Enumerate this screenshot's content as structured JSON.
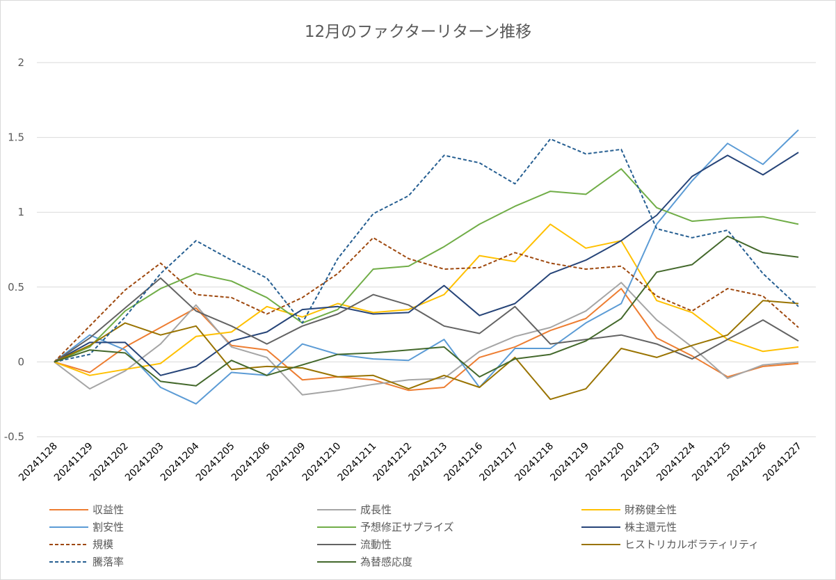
{
  "chart_data": {
    "type": "line",
    "title": "12月のファクターリターン推移",
    "xlabel": "",
    "ylabel": "",
    "ylim": [
      -0.5,
      2
    ],
    "yticks": [
      -0.5,
      0,
      0.5,
      1,
      1.5,
      2
    ],
    "ytick_labels": [
      "-0.5",
      "0",
      "0.5",
      "1",
      "1.5",
      "2"
    ],
    "grid": true,
    "legend_position": "bottom",
    "categories": [
      "20241128",
      "20241129",
      "20241202",
      "20241203",
      "20241204",
      "20241205",
      "20241206",
      "20241209",
      "20241210",
      "20241211",
      "20241212",
      "20241213",
      "20241216",
      "20241217",
      "20241218",
      "20241219",
      "20241220",
      "20241223",
      "20241224",
      "20241225",
      "20241226",
      "20241227"
    ],
    "series": [
      {
        "name": "収益性",
        "color": "#ED7D31",
        "dash": "solid",
        "values": [
          0,
          -0.07,
          0.1,
          0.23,
          0.36,
          0.11,
          0.08,
          -0.12,
          -0.1,
          -0.12,
          -0.19,
          -0.17,
          0.03,
          0.1,
          0.21,
          0.29,
          0.49,
          0.16,
          0.04,
          -0.1,
          -0.03,
          -0.01
        ]
      },
      {
        "name": "成長性",
        "color": "#A5A5A5",
        "dash": "solid",
        "values": [
          0,
          -0.18,
          -0.06,
          0.12,
          0.38,
          0.1,
          0.03,
          -0.22,
          -0.19,
          -0.15,
          -0.12,
          -0.11,
          0.07,
          0.17,
          0.23,
          0.34,
          0.53,
          0.28,
          0.1,
          -0.11,
          -0.02,
          0.0
        ]
      },
      {
        "name": "財務健全性",
        "color": "#FFC000",
        "dash": "solid",
        "values": [
          0,
          -0.09,
          -0.05,
          -0.01,
          0.17,
          0.2,
          0.37,
          0.3,
          0.39,
          0.33,
          0.35,
          0.45,
          0.71,
          0.67,
          0.92,
          0.76,
          0.81,
          0.41,
          0.33,
          0.15,
          0.07,
          0.1
        ]
      },
      {
        "name": "割安性",
        "color": "#5B9BD5",
        "dash": "solid",
        "values": [
          0,
          0.18,
          0.08,
          -0.17,
          -0.28,
          -0.07,
          -0.09,
          0.12,
          0.05,
          0.02,
          0.01,
          0.15,
          -0.17,
          0.09,
          0.09,
          0.26,
          0.39,
          0.92,
          1.21,
          1.46,
          1.32,
          1.55
        ]
      },
      {
        "name": "予想修正サプライズ",
        "color": "#70AD47",
        "dash": "solid",
        "values": [
          0,
          0.1,
          0.34,
          0.49,
          0.59,
          0.54,
          0.43,
          0.26,
          0.35,
          0.62,
          0.64,
          0.77,
          0.92,
          1.04,
          1.14,
          1.12,
          1.29,
          1.03,
          0.94,
          0.96,
          0.97,
          0.92
        ]
      },
      {
        "name": "株主還元性",
        "color": "#264478",
        "dash": "solid",
        "values": [
          0,
          0.13,
          0.13,
          -0.09,
          -0.03,
          0.14,
          0.2,
          0.35,
          0.37,
          0.32,
          0.33,
          0.51,
          0.31,
          0.39,
          0.59,
          0.68,
          0.81,
          0.98,
          1.24,
          1.38,
          1.25,
          1.4
        ]
      },
      {
        "name": "規模",
        "color": "#9E480E",
        "dash": "dashed",
        "values": [
          0,
          0.24,
          0.48,
          0.66,
          0.45,
          0.43,
          0.32,
          0.43,
          0.59,
          0.83,
          0.69,
          0.62,
          0.63,
          0.73,
          0.66,
          0.62,
          0.64,
          0.44,
          0.34,
          0.49,
          0.44,
          0.23
        ]
      },
      {
        "name": "流動性",
        "color": "#636363",
        "dash": "solid",
        "values": [
          0,
          0.16,
          0.36,
          0.56,
          0.34,
          0.24,
          0.12,
          0.24,
          0.32,
          0.45,
          0.38,
          0.24,
          0.19,
          0.37,
          0.12,
          0.15,
          0.18,
          0.12,
          0.02,
          0.15,
          0.28,
          0.14
        ]
      },
      {
        "name": "ヒストリカルボラティリティ",
        "color": "#997300",
        "dash": "solid",
        "values": [
          0,
          0.11,
          0.26,
          0.18,
          0.24,
          -0.05,
          -0.03,
          -0.04,
          -0.1,
          -0.09,
          -0.18,
          -0.09,
          -0.17,
          0.03,
          -0.25,
          -0.18,
          0.09,
          0.03,
          0.11,
          0.18,
          0.41,
          0.39
        ]
      },
      {
        "name": "騰落率",
        "color": "#255E91",
        "dash": "dashed",
        "values": [
          0,
          0.05,
          0.3,
          0.59,
          0.81,
          0.68,
          0.56,
          0.26,
          0.69,
          0.99,
          1.11,
          1.38,
          1.33,
          1.19,
          1.49,
          1.39,
          1.42,
          0.89,
          0.83,
          0.88,
          0.59,
          0.37
        ]
      },
      {
        "name": "為替感応度",
        "color": "#43682B",
        "dash": "solid",
        "values": [
          0,
          0.08,
          0.06,
          -0.13,
          -0.16,
          0.01,
          -0.09,
          -0.02,
          0.05,
          0.06,
          0.08,
          0.1,
          -0.1,
          0.02,
          0.05,
          0.14,
          0.29,
          0.6,
          0.65,
          0.84,
          0.73,
          0.7
        ]
      }
    ]
  }
}
